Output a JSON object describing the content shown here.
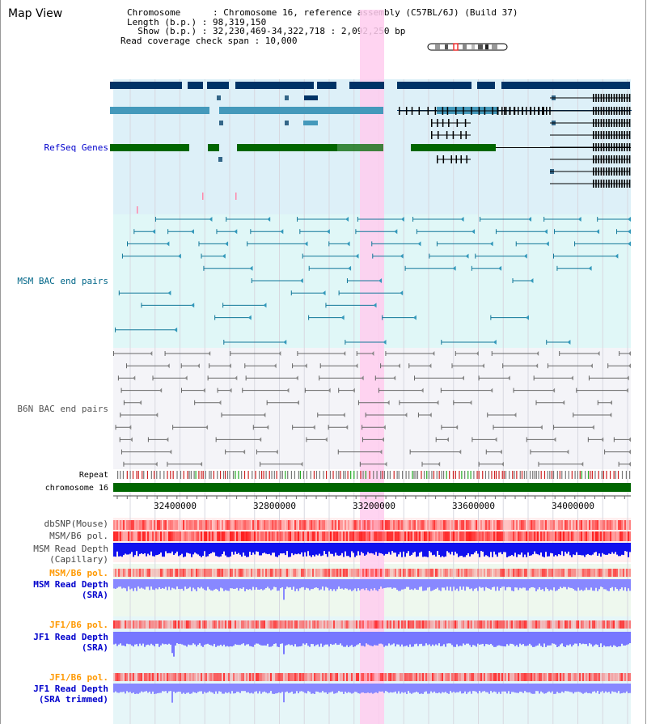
{
  "header": {
    "title": "Map View",
    "chromosome_line": "Chromosome      : Chromosome 16, reference assembly (C57BL/6J) (Build 37)",
    "length_line": "Length (b.p.) : 98,319,150",
    "show_line": "  Show (b.p.) : 32,230,469-34,322,718 : 2,092,250 bp",
    "coverage_line": "Read coverage check span : 10,000"
  },
  "tracks": {
    "refseq": {
      "label": "RefSeq Genes",
      "color": "#0000cc"
    },
    "msm_bac": {
      "label": "MSM BAC end pairs",
      "color": "#006688"
    },
    "b6n_bac": {
      "label": "B6N BAC end pairs",
      "color": "#555555"
    },
    "repeat": {
      "label": "Repeat"
    },
    "chromosome": {
      "label": "chromosome 16"
    },
    "dbsnp": {
      "label": "dbSNP(Mouse)"
    },
    "msm_pol": {
      "label": "MSM/B6 pol."
    },
    "msm_depth_cap": {
      "label": "MSM Read Depth\n(Capillary)"
    },
    "msm_pol2": {
      "label": "MSM/B6 pol.",
      "color": "#ff9900"
    },
    "msm_depth_sra": {
      "label": "MSM Read Depth\n(SRA)",
      "color": "#0000cc"
    },
    "jf1_pol": {
      "label": "JF1/B6 pol.",
      "color": "#ff9900"
    },
    "jf1_depth_sra": {
      "label": "JF1 Read Depth\n(SRA)",
      "color": "#0000cc"
    },
    "jf1_pol2": {
      "label": "JF1/B6 pol.",
      "color": "#ff9900"
    },
    "jf1_depth_trim": {
      "label": "JF1 Read Depth\n(SRA trimmed)",
      "color": "#0000cc"
    }
  },
  "axis": {
    "ticks": [
      "32400000",
      "32800000",
      "33200000",
      "33600000",
      "34000000"
    ]
  },
  "colors": {
    "gene_dark": "#003366",
    "gene_mid": "#4499bb",
    "gene_green": "#006600",
    "highlight": "#ffccee",
    "depth_blue": "#0000ee",
    "depth_light": "#8888ff",
    "pol_red": "#ff4444"
  }
}
